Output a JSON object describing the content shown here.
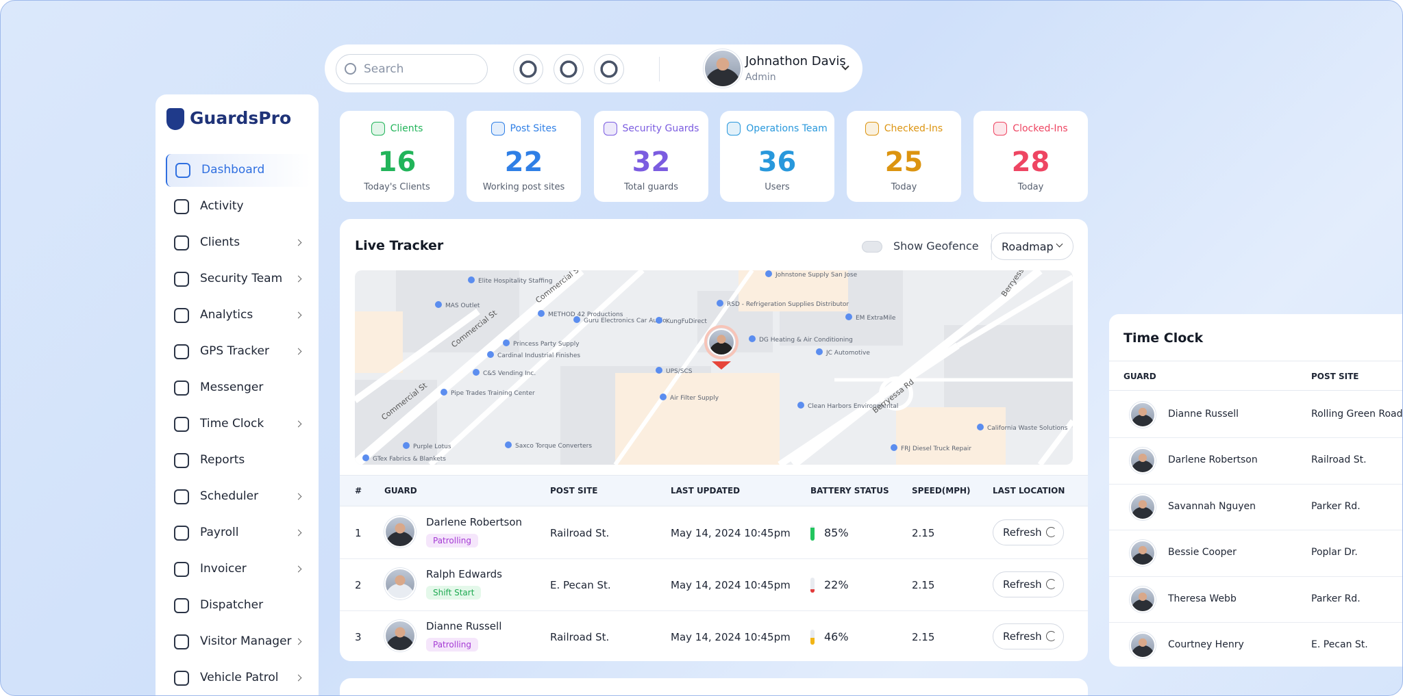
{
  "header": {
    "search_placeholder": "Search",
    "user_name": "Johnathon Davis",
    "user_role": "Admin"
  },
  "sidebar": {
    "brand": "GuardsPro",
    "items": [
      {
        "label": "Dashboard",
        "active": true,
        "submenu": false
      },
      {
        "label": "Activity",
        "active": false,
        "submenu": false
      },
      {
        "label": "Clients",
        "active": false,
        "submenu": true
      },
      {
        "label": "Security Team",
        "active": false,
        "submenu": true
      },
      {
        "label": "Analytics",
        "active": false,
        "submenu": true
      },
      {
        "label": "GPS Tracker",
        "active": false,
        "submenu": true
      },
      {
        "label": "Messenger",
        "active": false,
        "submenu": false
      },
      {
        "label": "Time Clock",
        "active": false,
        "submenu": true
      },
      {
        "label": "Reports",
        "active": false,
        "submenu": false
      },
      {
        "label": "Scheduler",
        "active": false,
        "submenu": true
      },
      {
        "label": "Payroll",
        "active": false,
        "submenu": true
      },
      {
        "label": "Invoicer",
        "active": false,
        "submenu": true
      },
      {
        "label": "Dispatcher",
        "active": false,
        "submenu": false
      },
      {
        "label": "Visitor Manager",
        "active": false,
        "submenu": true
      },
      {
        "label": "Vehicle Patrol",
        "active": false,
        "submenu": true
      }
    ]
  },
  "stats": [
    {
      "title": "Clients",
      "value": "16",
      "caption": "Today's Clients",
      "color": "#22b45a"
    },
    {
      "title": "Post Sites",
      "value": "22",
      "caption": "Working post sites",
      "color": "#2f7fe6"
    },
    {
      "title": "Security Guards",
      "value": "32",
      "caption": "Total guards",
      "color": "#7b5ce0"
    },
    {
      "title": "Operations Team",
      "value": "36",
      "caption": "Users",
      "color": "#2898dc"
    },
    {
      "title": "Checked-Ins",
      "value": "25",
      "caption": "Today",
      "color": "#dc9410"
    },
    {
      "title": "Clocked-Ins",
      "value": "28",
      "caption": "Today",
      "color": "#ee4562"
    }
  ],
  "tracker": {
    "title": "Live Tracker",
    "geofence_label": "Show Geofence",
    "map_mode": "Roadmap",
    "map_labels": [
      "Elite Hospitality Staffing",
      "MAS Outlet",
      "METHOD 42 Productions",
      "Guru Electronics Car Audio",
      "KungFuDirect",
      "RSD - Refrigeration Supplies Distributor",
      "Johnstone Supply San Jose",
      "EM ExtraMile",
      "Princess Party Supply",
      "Cardinal Industrial Finishes",
      "C&S Vending Inc.",
      "UPS/SCS",
      "JC Automotive",
      "Air Filter Supply",
      "Pipe Trades Training Center",
      "Clean Harbors Environmental",
      "California Waste Solutions",
      "Purple Lotus",
      "Saxco Torque Converters",
      "FRJ Diesel Truck Repair",
      "GTex Fabrics & Blankets",
      "Commercial St",
      "Commercial St",
      "Commercial St",
      "Berryessa Rd",
      "Berryessa Rd",
      "DG Heating & Air Conditioning"
    ],
    "columns": [
      "#",
      "GUARD",
      "POST SITE",
      "LAST UPDATED",
      "BATTERY STATUS",
      "SPEED(MPH)",
      "LAST LOCATION"
    ],
    "rows": [
      {
        "index": "1",
        "guard": "Darlene Robertson",
        "status": "Patrolling",
        "status_kind": "purple",
        "post_site": "Railroad St.",
        "updated": "May 14, 2024 10:45pm",
        "battery": "85%",
        "battery_color": "#22c55e",
        "speed": "2.15",
        "action": "Refresh"
      },
      {
        "index": "2",
        "guard": "Ralph Edwards",
        "status": "Shift Start",
        "status_kind": "green",
        "post_site": "E. Pecan St.",
        "updated": "May 14, 2024 10:45pm",
        "battery": "22%",
        "battery_color": "#e23b3b",
        "speed": "2.15",
        "action": "Refresh"
      },
      {
        "index": "3",
        "guard": "Dianne Russell",
        "status": "Patrolling",
        "status_kind": "purple",
        "post_site": "Railroad St.",
        "updated": "May 14, 2024 10:45pm",
        "battery": "46%",
        "battery_color": "#f2b515",
        "speed": "2.15",
        "action": "Refresh"
      }
    ]
  },
  "time_clock": {
    "title": "Time Clock",
    "columns": [
      "GUARD",
      "POST SITE"
    ],
    "rows": [
      {
        "guard": "Dianne Russell",
        "post_site": "Rolling Green Road."
      },
      {
        "guard": "Darlene Robertson",
        "post_site": "Railroad St."
      },
      {
        "guard": "Savannah Nguyen",
        "post_site": "Parker Rd."
      },
      {
        "guard": "Bessie Cooper",
        "post_site": "Poplar Dr."
      },
      {
        "guard": "Theresa Webb",
        "post_site": "Parker Rd."
      },
      {
        "guard": "Courtney Henry",
        "post_site": "E. Pecan St."
      }
    ]
  }
}
